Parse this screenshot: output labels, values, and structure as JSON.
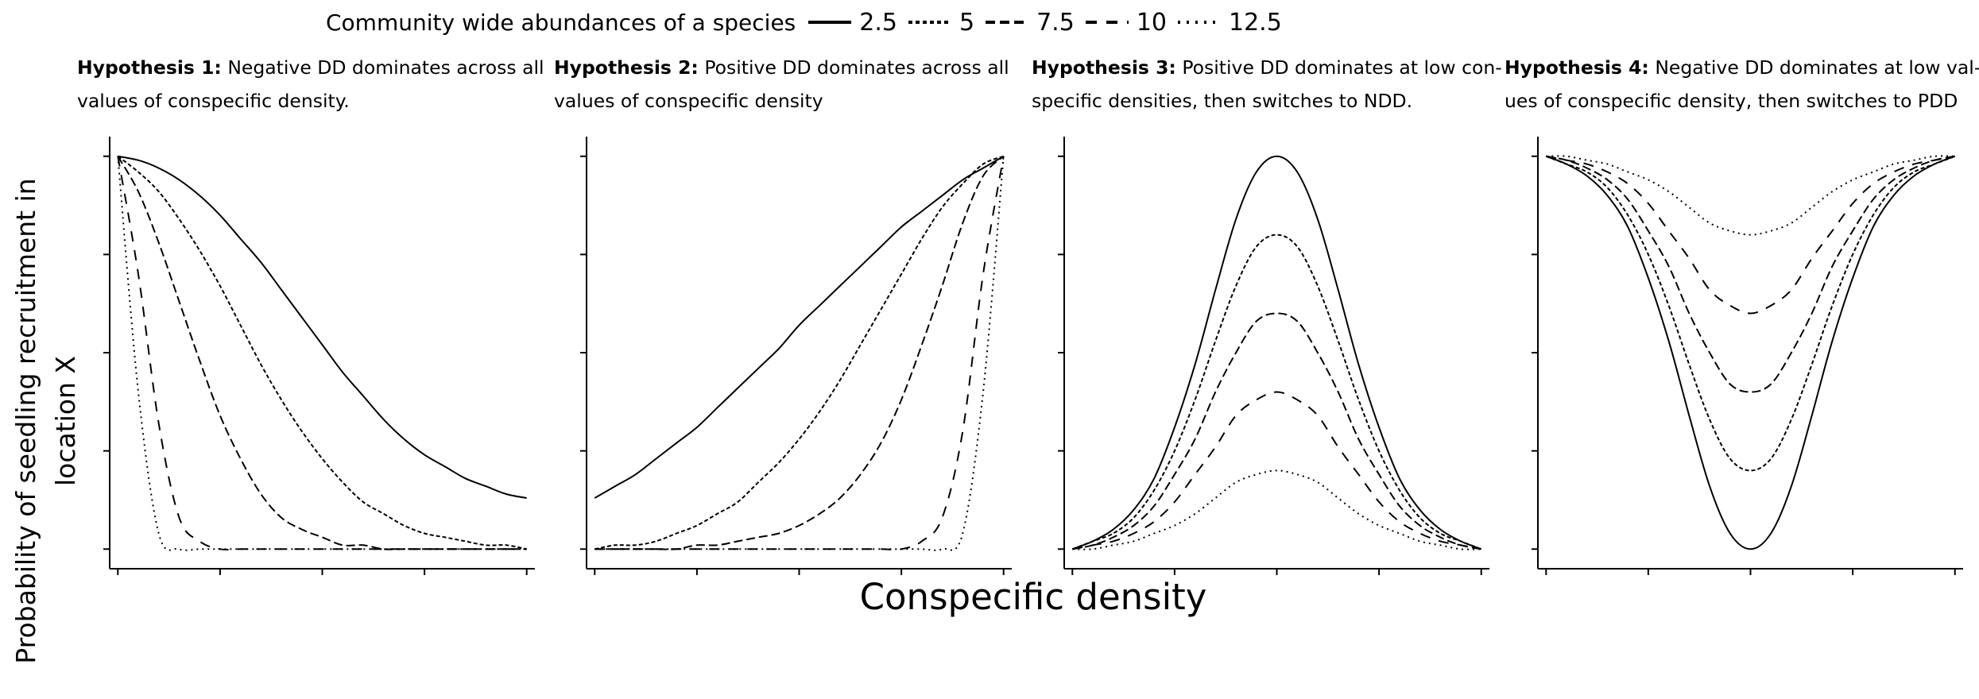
{
  "legend": {
    "title": "Community wide abundances of a species",
    "entries": [
      {
        "label": "2.5",
        "style": "solid"
      },
      {
        "label": "5",
        "style": "dotted-dense"
      },
      {
        "label": "7.5",
        "style": "long-dash"
      },
      {
        "label": "10",
        "style": "dash"
      },
      {
        "label": "12.5",
        "style": "dotted"
      }
    ]
  },
  "axes": {
    "xlabel": "Conspecific density",
    "ylabel": "Probability of seedling recruitment in location X"
  },
  "panels": [
    {
      "title_bold": "Hypothesis 1:",
      "title_rest": "Negative DD dominates across all values of conspecific density."
    },
    {
      "title_bold": "Hypothesis 2:",
      "title_rest": "Positive DD dominates across all values of conspecific density"
    },
    {
      "title_bold": "Hypothesis 3:",
      "title_rest": "Positive DD dominates at low con-specific densities, then switches to NDD."
    },
    {
      "title_bold": "Hypothesis 4:",
      "title_rest": "Negative DD dominates at low val-ues of conspecific density, then switches to PDD"
    }
  ],
  "chart_data": [
    {
      "type": "line",
      "title": "Hypothesis 1: Negative DD dominates across all values of conspecific density.",
      "xlabel": "Conspecific density",
      "ylabel": "Probability of seedling recruitment in location X",
      "x": [
        0,
        0.05,
        0.1,
        0.15,
        0.2,
        0.25,
        0.3,
        0.35,
        0.4,
        0.45,
        0.5,
        0.55,
        0.6,
        0.65,
        0.7,
        0.75,
        0.8,
        0.85,
        0.9,
        0.95,
        1
      ],
      "series": [
        {
          "name": "2.5",
          "style": "solid",
          "values": [
            1.0,
            0.99,
            0.97,
            0.94,
            0.9,
            0.85,
            0.79,
            0.73,
            0.66,
            0.59,
            0.52,
            0.45,
            0.39,
            0.33,
            0.28,
            0.24,
            0.21,
            0.18,
            0.16,
            0.14,
            0.13
          ]
        },
        {
          "name": "5",
          "style": "dotted-dense",
          "values": [
            1.0,
            0.96,
            0.91,
            0.84,
            0.76,
            0.67,
            0.57,
            0.47,
            0.38,
            0.3,
            0.23,
            0.17,
            0.12,
            0.09,
            0.06,
            0.04,
            0.03,
            0.02,
            0.01,
            0.01,
            0.0
          ]
        },
        {
          "name": "7.5",
          "style": "long-dash",
          "values": [
            1.0,
            0.91,
            0.78,
            0.63,
            0.48,
            0.34,
            0.23,
            0.14,
            0.08,
            0.05,
            0.03,
            0.01,
            0.01,
            0.0,
            0.0,
            0.0,
            0.0,
            0.0,
            0.0,
            0.0,
            0.0
          ]
        },
        {
          "name": "10",
          "style": "dash",
          "values": [
            1.0,
            0.7,
            0.32,
            0.08,
            0.02,
            0.0,
            0.0,
            0.0,
            0.0,
            0.0,
            0.0,
            0.0,
            0.0,
            0.0,
            0.0,
            0.0,
            0.0,
            0.0,
            0.0,
            0.0,
            0.0
          ]
        },
        {
          "name": "12.5",
          "style": "dotted",
          "values": [
            1.0,
            0.4,
            0.04,
            0.0,
            0.0,
            0.0,
            0.0,
            0.0,
            0.0,
            0.0,
            0.0,
            0.0,
            0.0,
            0.0,
            0.0,
            0.0,
            0.0,
            0.0,
            0.0,
            0.0,
            0.0
          ]
        }
      ],
      "xlim": [
        -0.02,
        1.02
      ],
      "ylim": [
        -0.05,
        1.05
      ],
      "grid": false,
      "tick_labels": false
    },
    {
      "type": "line",
      "title": "Hypothesis 2: Positive DD dominates across all values of conspecific density",
      "xlabel": "Conspecific density",
      "ylabel": "Probability of seedling recruitment in location X",
      "x": [
        0,
        0.05,
        0.1,
        0.15,
        0.2,
        0.25,
        0.3,
        0.35,
        0.4,
        0.45,
        0.5,
        0.55,
        0.6,
        0.65,
        0.7,
        0.75,
        0.8,
        0.85,
        0.9,
        0.95,
        1
      ],
      "series": [
        {
          "name": "2.5",
          "style": "solid",
          "values": [
            0.13,
            0.16,
            0.19,
            0.23,
            0.27,
            0.31,
            0.36,
            0.41,
            0.46,
            0.51,
            0.57,
            0.62,
            0.67,
            0.72,
            0.77,
            0.82,
            0.86,
            0.9,
            0.94,
            0.97,
            1.0
          ]
        },
        {
          "name": "5",
          "style": "dotted-dense",
          "values": [
            0.0,
            0.01,
            0.01,
            0.02,
            0.04,
            0.06,
            0.09,
            0.12,
            0.17,
            0.22,
            0.28,
            0.35,
            0.43,
            0.52,
            0.61,
            0.7,
            0.79,
            0.87,
            0.93,
            0.98,
            1.0
          ]
        },
        {
          "name": "7.5",
          "style": "long-dash",
          "values": [
            0.0,
            0.0,
            0.0,
            0.0,
            0.0,
            0.01,
            0.01,
            0.02,
            0.03,
            0.04,
            0.06,
            0.09,
            0.13,
            0.19,
            0.27,
            0.38,
            0.52,
            0.67,
            0.83,
            0.95,
            1.0
          ]
        },
        {
          "name": "10",
          "style": "dash",
          "values": [
            0.0,
            0.0,
            0.0,
            0.0,
            0.0,
            0.0,
            0.0,
            0.0,
            0.0,
            0.0,
            0.0,
            0.0,
            0.0,
            0.0,
            0.0,
            0.0,
            0.02,
            0.08,
            0.3,
            0.7,
            1.0
          ]
        },
        {
          "name": "12.5",
          "style": "dotted",
          "values": [
            0.0,
            0.0,
            0.0,
            0.0,
            0.0,
            0.0,
            0.0,
            0.0,
            0.0,
            0.0,
            0.0,
            0.0,
            0.0,
            0.0,
            0.0,
            0.0,
            0.0,
            0.0,
            0.04,
            0.4,
            1.0
          ]
        }
      ],
      "xlim": [
        -0.02,
        1.02
      ],
      "ylim": [
        -0.05,
        1.05
      ],
      "grid": false,
      "tick_labels": false
    },
    {
      "type": "line",
      "title": "Hypothesis 3: Positive DD dominates at low con-specific densities, then switches to NDD.",
      "xlabel": "Conspecific density",
      "ylabel": "Probability of seedling recruitment in location X",
      "x": [
        0,
        0.05,
        0.1,
        0.15,
        0.2,
        0.25,
        0.3,
        0.35,
        0.4,
        0.45,
        0.5,
        0.55,
        0.6,
        0.65,
        0.7,
        0.75,
        0.8,
        0.85,
        0.9,
        0.95,
        1
      ],
      "series": [
        {
          "name": "2.5",
          "style": "solid",
          "values": [
            0.0,
            0.02,
            0.05,
            0.1,
            0.18,
            0.31,
            0.47,
            0.66,
            0.84,
            0.96,
            1.0,
            0.96,
            0.84,
            0.66,
            0.47,
            0.31,
            0.18,
            0.1,
            0.05,
            0.02,
            0.0
          ]
        },
        {
          "name": "5",
          "style": "dotted-dense",
          "values": [
            0.0,
            0.02,
            0.04,
            0.08,
            0.15,
            0.25,
            0.38,
            0.53,
            0.67,
            0.77,
            0.8,
            0.77,
            0.67,
            0.53,
            0.38,
            0.25,
            0.15,
            0.08,
            0.04,
            0.02,
            0.0
          ]
        },
        {
          "name": "7.5",
          "style": "long-dash",
          "values": [
            0.0,
            0.01,
            0.03,
            0.06,
            0.11,
            0.19,
            0.28,
            0.4,
            0.5,
            0.58,
            0.6,
            0.58,
            0.5,
            0.4,
            0.28,
            0.19,
            0.11,
            0.06,
            0.03,
            0.01,
            0.0
          ]
        },
        {
          "name": "10",
          "style": "dash",
          "values": [
            0.0,
            0.01,
            0.02,
            0.04,
            0.07,
            0.12,
            0.19,
            0.26,
            0.34,
            0.38,
            0.4,
            0.38,
            0.34,
            0.26,
            0.19,
            0.12,
            0.07,
            0.04,
            0.02,
            0.01,
            0.0
          ]
        },
        {
          "name": "12.5",
          "style": "dotted",
          "values": [
            0.0,
            0.0,
            0.01,
            0.02,
            0.04,
            0.06,
            0.09,
            0.13,
            0.17,
            0.19,
            0.2,
            0.19,
            0.17,
            0.13,
            0.09,
            0.06,
            0.04,
            0.02,
            0.01,
            0.0,
            0.0
          ]
        }
      ],
      "xlim": [
        -0.02,
        1.02
      ],
      "ylim": [
        -0.05,
        1.05
      ],
      "grid": false,
      "tick_labels": false
    },
    {
      "type": "line",
      "title": "Hypothesis 4: Negative DD dominates at low val-ues of conspecific density, then switches to PDD",
      "xlabel": "Conspecific density",
      "ylabel": "Probability of seedling recruitment in location X",
      "x": [
        0,
        0.05,
        0.1,
        0.15,
        0.2,
        0.25,
        0.3,
        0.35,
        0.4,
        0.45,
        0.5,
        0.55,
        0.6,
        0.65,
        0.7,
        0.75,
        0.8,
        0.85,
        0.9,
        0.95,
        1
      ],
      "series": [
        {
          "name": "2.5",
          "style": "solid",
          "values": [
            1.0,
            0.98,
            0.95,
            0.9,
            0.82,
            0.69,
            0.53,
            0.34,
            0.16,
            0.04,
            0.0,
            0.04,
            0.16,
            0.34,
            0.53,
            0.69,
            0.82,
            0.9,
            0.95,
            0.98,
            1.0
          ]
        },
        {
          "name": "5",
          "style": "dotted-dense",
          "values": [
            1.0,
            0.98,
            0.96,
            0.92,
            0.85,
            0.75,
            0.62,
            0.47,
            0.33,
            0.23,
            0.2,
            0.23,
            0.33,
            0.47,
            0.62,
            0.75,
            0.85,
            0.92,
            0.96,
            0.98,
            1.0
          ]
        },
        {
          "name": "7.5",
          "style": "long-dash",
          "values": [
            1.0,
            0.99,
            0.97,
            0.94,
            0.89,
            0.81,
            0.72,
            0.6,
            0.5,
            0.42,
            0.4,
            0.42,
            0.5,
            0.6,
            0.72,
            0.81,
            0.89,
            0.94,
            0.97,
            0.99,
            1.0
          ]
        },
        {
          "name": "10",
          "style": "dash",
          "values": [
            1.0,
            0.99,
            0.98,
            0.96,
            0.93,
            0.88,
            0.81,
            0.74,
            0.66,
            0.62,
            0.6,
            0.62,
            0.66,
            0.74,
            0.81,
            0.88,
            0.93,
            0.96,
            0.98,
            0.99,
            1.0
          ]
        },
        {
          "name": "12.5",
          "style": "dotted",
          "values": [
            1.0,
            1.0,
            0.99,
            0.98,
            0.96,
            0.94,
            0.91,
            0.87,
            0.83,
            0.81,
            0.8,
            0.81,
            0.83,
            0.87,
            0.91,
            0.94,
            0.96,
            0.98,
            0.99,
            1.0,
            1.0
          ]
        }
      ],
      "xlim": [
        -0.02,
        1.02
      ],
      "ylim": [
        -0.05,
        1.05
      ],
      "grid": false,
      "tick_labels": false
    }
  ]
}
